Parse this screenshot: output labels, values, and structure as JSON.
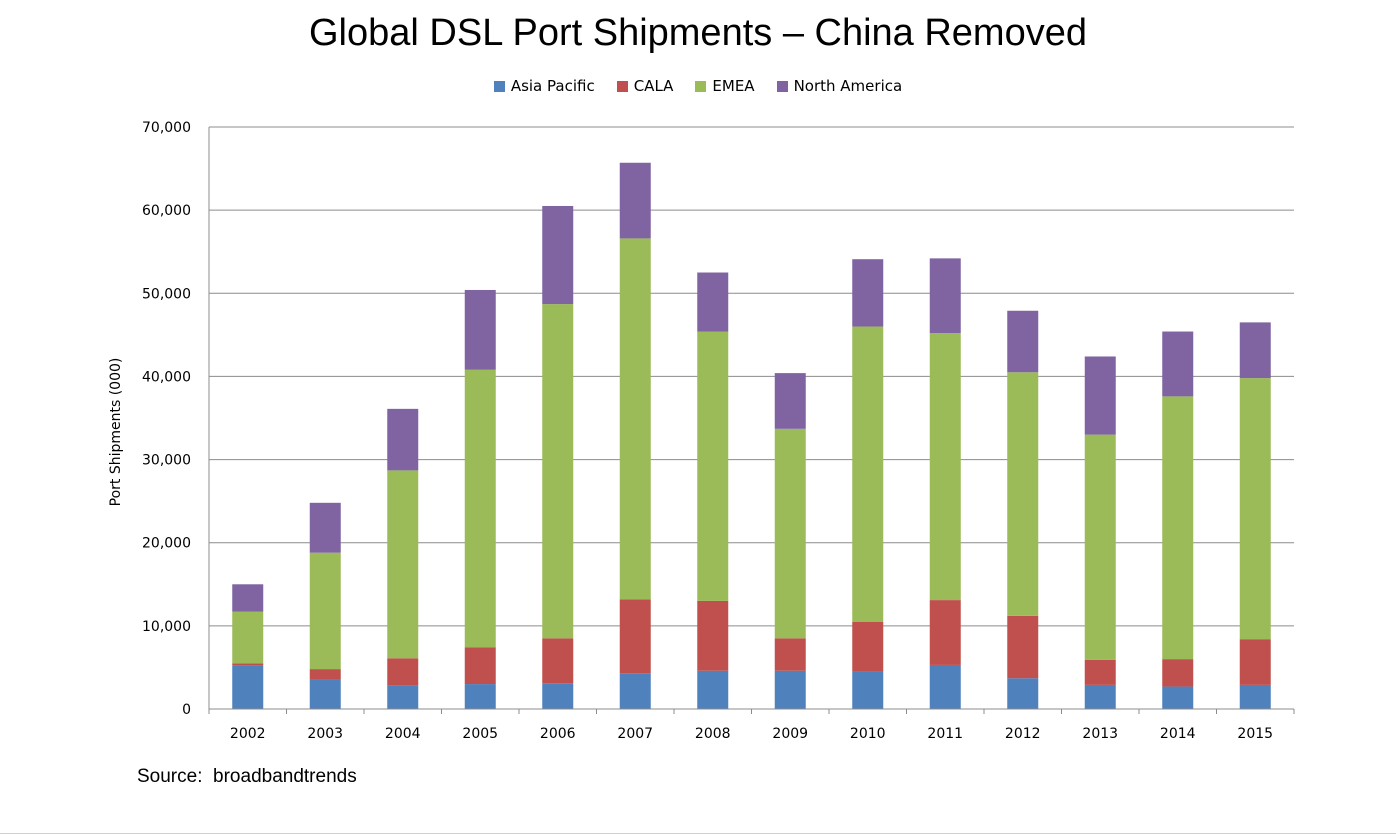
{
  "chart_data": {
    "type": "bar",
    "stacked": true,
    "title": "Global DSL Port Shipments – China Removed",
    "ylabel": "Port Shipments (000)",
    "xlabel": "",
    "ylim": [
      0,
      70000
    ],
    "yticks": [
      0,
      10000,
      20000,
      30000,
      40000,
      50000,
      60000,
      70000
    ],
    "ytick_labels": [
      "0",
      "10,000",
      "20,000",
      "30,000",
      "40,000",
      "50,000",
      "60,000",
      "70,000"
    ],
    "grid": true,
    "legend_position": "top",
    "categories": [
      "2002",
      "2003",
      "2004",
      "2005",
      "2006",
      "2007",
      "2008",
      "2009",
      "2010",
      "2011",
      "2012",
      "2013",
      "2014",
      "2015"
    ],
    "series": [
      {
        "name": "Asia Pacific",
        "color": "#4F81BD",
        "values": [
          5200,
          3500,
          2800,
          3000,
          3100,
          4300,
          4600,
          4600,
          4500,
          5300,
          3700,
          2900,
          2700,
          2900
        ]
      },
      {
        "name": "CALA",
        "color": "#C0504D",
        "values": [
          300,
          1300,
          3300,
          4400,
          5400,
          8900,
          8400,
          3900,
          6000,
          7800,
          7500,
          3000,
          3300,
          5500
        ]
      },
      {
        "name": "EMEA",
        "color": "#9BBB59",
        "values": [
          6200,
          14000,
          22600,
          33400,
          40200,
          43400,
          32400,
          25200,
          35500,
          32100,
          29300,
          27100,
          31600,
          31400
        ]
      },
      {
        "name": "North America",
        "color": "#8064A2",
        "values": [
          3300,
          6000,
          7400,
          9600,
          11800,
          9100,
          7100,
          6700,
          8100,
          9000,
          7400,
          9400,
          7800,
          6700
        ]
      }
    ]
  },
  "source_text": "Source:  broadbandtrends"
}
